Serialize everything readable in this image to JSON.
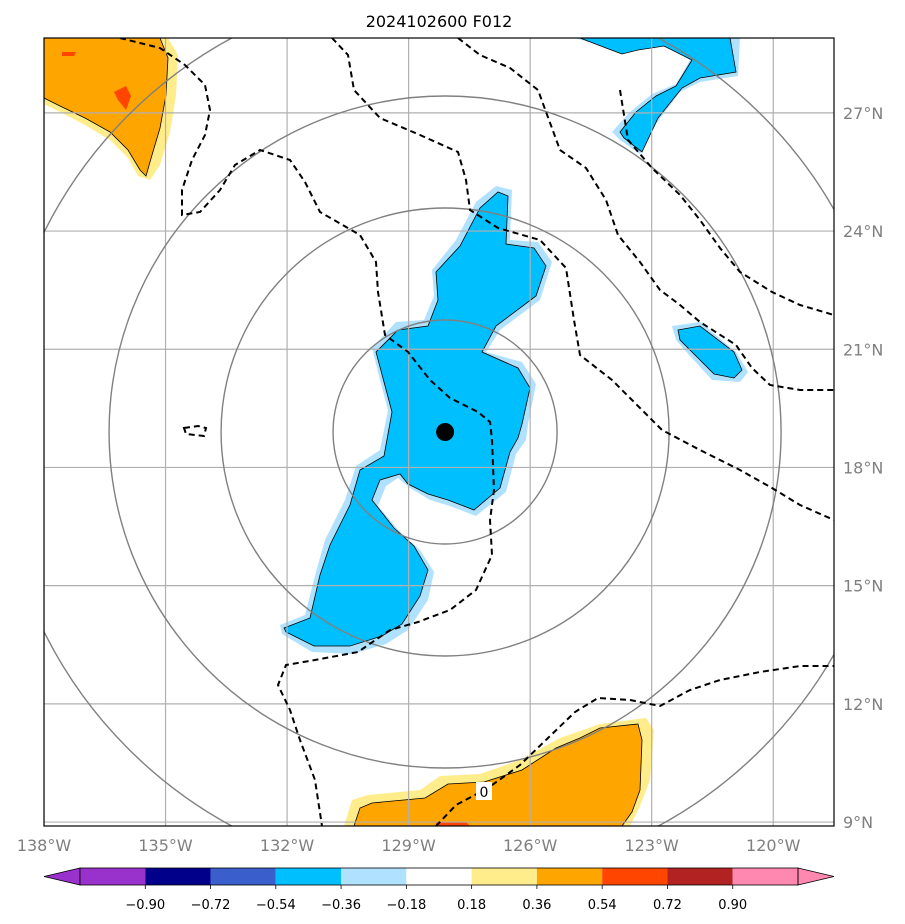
{
  "title": "2024102600 F012",
  "map": {
    "lon_range": [
      -138,
      -118.5
    ],
    "lat_range": [
      8.9,
      28.9
    ],
    "grid_color": "#b0b0b0",
    "range_ring_color": "#808080",
    "storm_center": {
      "lon": -128.1,
      "lat": 18.9
    },
    "contour_label": "0",
    "lon_ticks": [
      {
        "value": -138,
        "label": "138°W"
      },
      {
        "value": -135,
        "label": "135°W"
      },
      {
        "value": -132,
        "label": "132°W"
      },
      {
        "value": -129,
        "label": "129°W"
      },
      {
        "value": -126,
        "label": "126°W"
      },
      {
        "value": -123,
        "label": "123°W"
      },
      {
        "value": -120,
        "label": "120°W"
      }
    ],
    "lat_ticks": [
      {
        "value": 9,
        "label": "9°N"
      },
      {
        "value": 12,
        "label": "12°N"
      },
      {
        "value": 15,
        "label": "15°N"
      },
      {
        "value": 18,
        "label": "18°N"
      },
      {
        "value": 21,
        "label": "21°N"
      },
      {
        "value": 24,
        "label": "24°N"
      },
      {
        "value": 27,
        "label": "27°N"
      }
    ]
  },
  "colorbar": {
    "ticks": [
      "−0.90",
      "−0.72",
      "−0.54",
      "−0.36",
      "−0.18",
      "0.18",
      "0.36",
      "0.54",
      "0.72",
      "0.90"
    ],
    "colors": {
      "under": "#9932cc",
      "over": "#ff88b0",
      "bins": [
        "#00008b",
        "#3a5fcd",
        "#00bfff",
        "#b0e2ff",
        "#ffffff",
        "#ffec8b",
        "#ffa500",
        "#ff4500",
        "#b22222"
      ]
    }
  }
}
